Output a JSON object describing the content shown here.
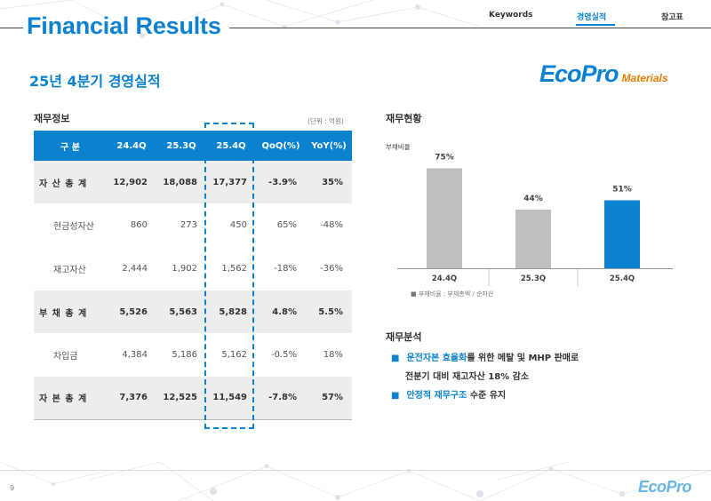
{
  "header": {
    "title": "Financial Results",
    "nav": [
      "Keywords",
      "경영실적",
      "참고표"
    ],
    "active_nav": "경영실적"
  },
  "subtitle": "25년 4분기 경영실적",
  "logo": {
    "main": "EcoPro",
    "sub": "Materials"
  },
  "table_section": {
    "label": "재무정보",
    "unit": "(단위 : 억원)",
    "columns": [
      "구 분",
      "24.4Q",
      "25.3Q",
      "25.4Q",
      "QoQ(%)",
      "YoY(%)"
    ],
    "rows": [
      {
        "label": "자 산 총 계",
        "main": true,
        "values": [
          "12,902",
          "18,088",
          "17,377",
          "-3.9%",
          "35%"
        ]
      },
      {
        "label": "현금성자산",
        "main": false,
        "values": [
          "860",
          "273",
          "450",
          "65%",
          "-48%"
        ]
      },
      {
        "label": "재고자산",
        "main": false,
        "values": [
          "2,444",
          "1,902",
          "1,562",
          "-18%",
          "-36%"
        ]
      },
      {
        "label": "부 채 총 계",
        "main": true,
        "values": [
          "5,526",
          "5,563",
          "5,828",
          "4.8%",
          "5.5%"
        ]
      },
      {
        "label": "차입금",
        "main": false,
        "values": [
          "4,384",
          "5,186",
          "5,162",
          "-0.5%",
          "18%"
        ]
      },
      {
        "label": "자 본 총 계",
        "main": true,
        "values": [
          "7,376",
          "12,525",
          "11,549",
          "-7.8%",
          "57%"
        ]
      }
    ]
  },
  "chart_section": {
    "label": "재무현황",
    "ylabel": "부채비율",
    "legend": "■ 부채비율 : 부채총액 / 순자산"
  },
  "chart_data": {
    "type": "bar",
    "categories": [
      "24.4Q",
      "25.3Q",
      "25.4Q"
    ],
    "values": [
      75,
      44,
      51
    ],
    "value_labels": [
      "75%",
      "44%",
      "51%"
    ],
    "colors": [
      "#bfbfbf",
      "#bfbfbf",
      "#0a82d0"
    ],
    "ylabel": "부채비율",
    "ylim": [
      0,
      100
    ]
  },
  "analysis": {
    "label": "재무분석",
    "bullet_icon": "■",
    "item1_hl": "운전자본 효율화",
    "item1_rest": "를 위한 메탈 및 MHP 판매로",
    "item1_line2": "전분기 대비 재고자산 18% 감소",
    "item2_hl": "안정적 재무구조",
    "item2_rest": " 수준 유지"
  },
  "footer": {
    "page": "9",
    "logo": "EcoPro"
  },
  "colors": {
    "accent": "#0a82d0",
    "highlight_bar": "#0a82d0",
    "gray_bar": "#bfbfbf",
    "orange": "#f07c00"
  }
}
